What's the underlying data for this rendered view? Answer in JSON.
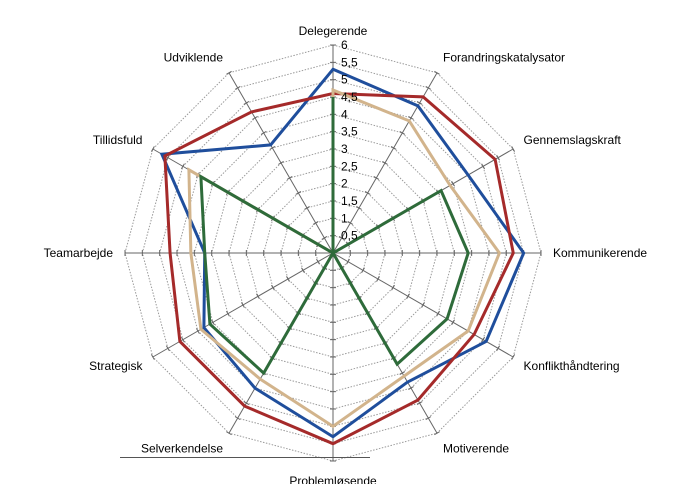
{
  "chart_data": {
    "type": "radar",
    "title": "",
    "categories": [
      "Delegerende",
      "Forandringskatalysator",
      "Gennemslagskraft",
      "Kommunikerende",
      "Konflikthåndtering",
      "Motiverende",
      "Problemløsende",
      "Selverkendelse",
      "Strategisk",
      "Teamarbejde",
      "Tillidsfuld",
      "Udviklende"
    ],
    "rlim": [
      0,
      6
    ],
    "ticks": [
      "0,5",
      "1",
      "1,5",
      "2",
      "2,5",
      "3",
      "3,5",
      "4",
      "4,5",
      "5",
      "5,5",
      "6"
    ],
    "grid": true,
    "legend": "none",
    "series": [
      {
        "color": "#1f4e9c",
        "values": [
          5.3,
          4.9,
          4.5,
          5.5,
          5.1,
          4.3,
          5.3,
          4.5,
          4.3,
          3.7,
          5.7,
          3.6
        ]
      },
      {
        "color": "#a52a2a",
        "values": [
          4.6,
          5.2,
          5.4,
          5.2,
          4.7,
          4.9,
          5.5,
          5.1,
          5.1,
          4.7,
          5.6,
          4.7
        ]
      },
      {
        "color": "#d2b48c",
        "values": [
          4.7,
          4.4,
          3.9,
          4.8,
          4.5,
          4.1,
          5.0,
          4.2,
          4.4,
          4.1,
          4.8,
          0.0
        ]
      },
      {
        "color": "#2e6b3a",
        "values": [
          4.5,
          0.0,
          3.6,
          3.9,
          3.8,
          3.7,
          0.0,
          4.0,
          4.1,
          3.7,
          4.4,
          0.0
        ]
      }
    ]
  }
}
